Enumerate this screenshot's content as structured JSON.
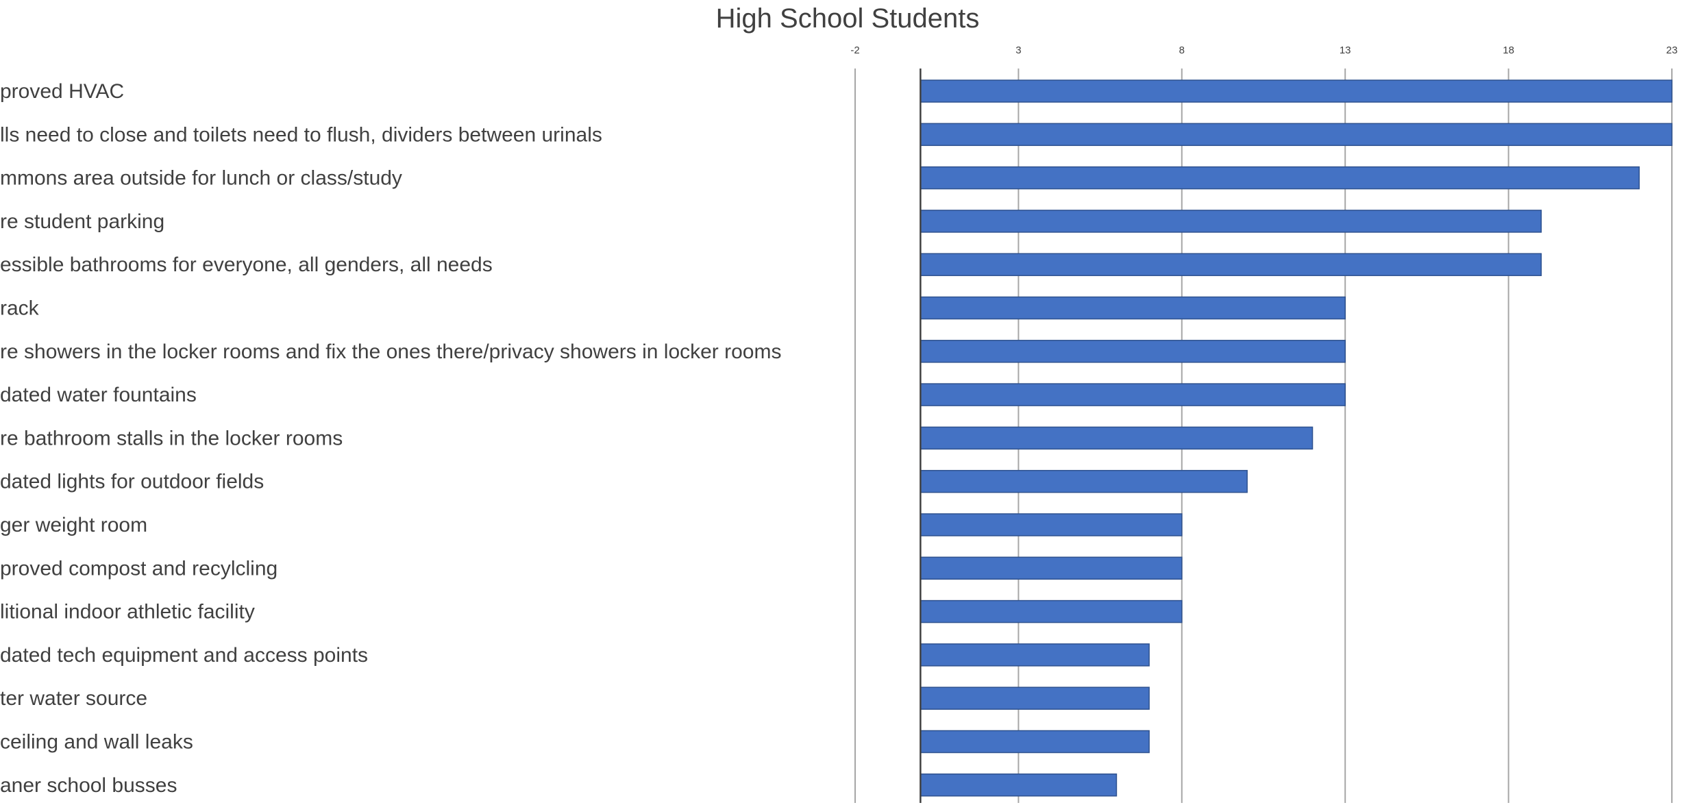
{
  "chart_data": {
    "type": "bar",
    "orientation": "horizontal",
    "title": "High School Students",
    "xlabel": "",
    "ylabel": "",
    "xlim": [
      -2,
      23
    ],
    "xticks": [
      -2,
      3,
      8,
      13,
      18,
      23
    ],
    "grid": true,
    "legend": "none",
    "bar_color": "#4472c4",
    "categories": [
      "proved HVAC",
      "lls need to close and toilets need to flush, dividers between urinals",
      "mmons area outside for lunch or class/study",
      "re student parking",
      "essible bathrooms for everyone, all genders, all needs",
      "rack",
      "re showers in the locker rooms and fix the ones there/privacy showers in locker rooms",
      "dated water fountains",
      "re bathroom stalls in the locker rooms",
      "dated lights for outdoor fields",
      "ger weight room",
      "proved compost and recylcling",
      "litional indoor athletic facility",
      "dated tech equipment and access points",
      "ter water source",
      "ceiling and wall leaks",
      "aner school busses"
    ],
    "values": [
      23,
      23,
      22,
      19,
      19,
      13,
      13,
      13,
      12,
      10,
      8,
      8,
      8,
      7,
      7,
      7,
      6
    ]
  }
}
